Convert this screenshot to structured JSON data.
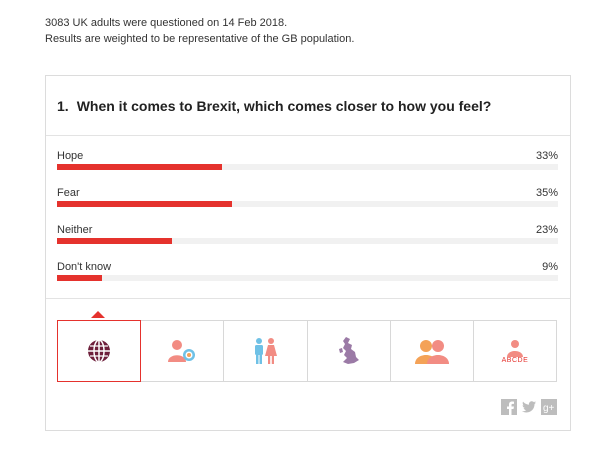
{
  "intro": {
    "line1": "3083 UK adults were questioned on 14 Feb 2018.",
    "line2": "Results are weighted to be representative of the GB population."
  },
  "question": {
    "number": "1.",
    "text": "When it comes to Brexit, which comes closer to how you feel?"
  },
  "results": [
    {
      "label": "Hope",
      "percent": "33%",
      "value": 33
    },
    {
      "label": "Fear",
      "percent": "35%",
      "value": 35
    },
    {
      "label": "Neither",
      "percent": "23%",
      "value": 23
    },
    {
      "label": "Don't know",
      "percent": "9%",
      "value": 9
    }
  ],
  "tabs": [
    {
      "name": "globe-icon",
      "active": true
    },
    {
      "name": "age-icon",
      "active": false
    },
    {
      "name": "gender-icon",
      "active": false
    },
    {
      "name": "region-map-icon",
      "active": false
    },
    {
      "name": "vote-group-icon",
      "active": false
    },
    {
      "name": "social-grade-icon",
      "active": false,
      "text": "ABCDE"
    }
  ],
  "social": [
    "facebook-icon",
    "twitter-icon",
    "google-plus-icon"
  ],
  "colors": {
    "bar": "#e5322d",
    "track": "#f1f1f1",
    "icon_dark": "#6e1f3b",
    "icon_orange": "#f4a257",
    "icon_pink": "#f28c83",
    "icon_purple": "#9b7aa6",
    "icon_blue": "#6fc1e6"
  }
}
